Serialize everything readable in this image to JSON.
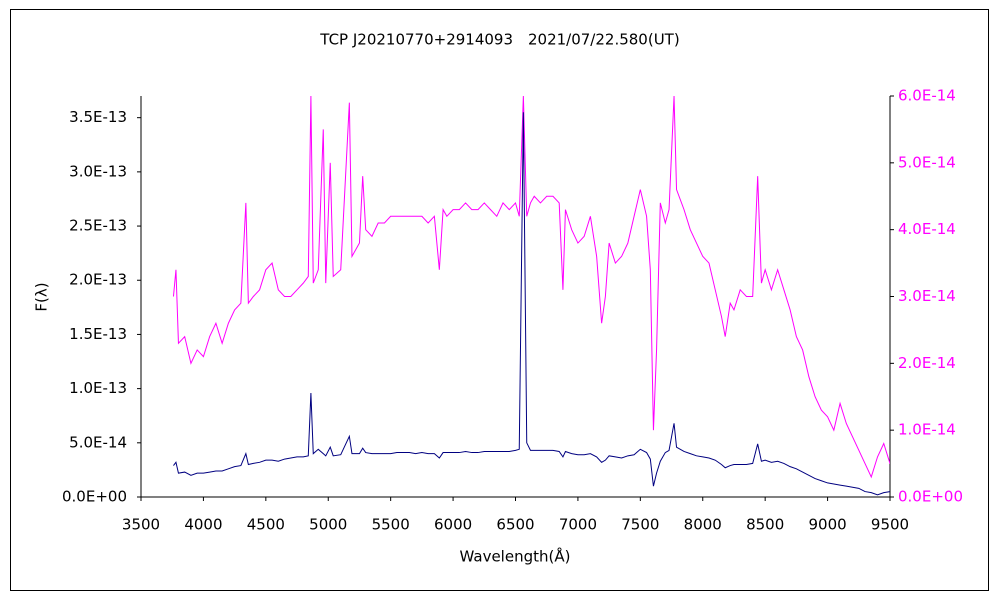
{
  "chart_data": {
    "type": "line",
    "title": "TCP J20210770+2914093　2021/07/22.580(UT)",
    "x_label": "Wavelength(Å)",
    "y_label": "F(λ)",
    "xlim": [
      3500,
      9500
    ],
    "xticks": [
      3500,
      4000,
      4500,
      5000,
      5500,
      6000,
      6500,
      7000,
      7500,
      8000,
      8500,
      9000,
      9500
    ],
    "ylim": [
      0,
      3.7e-13
    ],
    "yticks": [
      {
        "value": 0,
        "label": "0.0E+00"
      },
      {
        "value": 5e-14,
        "label": "5.0E-14"
      },
      {
        "value": 1e-13,
        "label": "1.0E-13"
      },
      {
        "value": 1.5e-13,
        "label": "1.5E-13"
      },
      {
        "value": 2e-13,
        "label": "2.0E-13"
      },
      {
        "value": 2.5e-13,
        "label": "2.5E-13"
      },
      {
        "value": 3e-13,
        "label": "3.0E-13"
      },
      {
        "value": 3.5e-13,
        "label": "3.5E-13"
      }
    ],
    "y2lim": [
      0,
      6e-14
    ],
    "y2ticks": [
      {
        "value": 0,
        "label": "0.0E+00"
      },
      {
        "value": 1e-14,
        "label": "1.0E-14"
      },
      {
        "value": 2e-14,
        "label": "2.0E-14"
      },
      {
        "value": 3e-14,
        "label": "3.0E-14"
      },
      {
        "value": 4e-14,
        "label": "4.0E-14"
      },
      {
        "value": 5e-14,
        "label": "5.0E-14"
      },
      {
        "value": 6e-14,
        "label": "6.0E-14"
      }
    ],
    "x": [
      3760,
      3780,
      3800,
      3850,
      3900,
      3950,
      4000,
      4050,
      4100,
      4150,
      4200,
      4250,
      4300,
      4340,
      4360,
      4400,
      4450,
      4500,
      4550,
      4600,
      4650,
      4700,
      4750,
      4800,
      4840,
      4861,
      4880,
      4920,
      4960,
      4980,
      5016,
      5040,
      5100,
      5169,
      5190,
      5250,
      5276,
      5300,
      5350,
      5400,
      5450,
      5500,
      5550,
      5600,
      5650,
      5700,
      5750,
      5800,
      5850,
      5890,
      5920,
      5950,
      6000,
      6050,
      6100,
      6150,
      6200,
      6250,
      6300,
      6350,
      6400,
      6450,
      6500,
      6530,
      6563,
      6590,
      6620,
      6650,
      6700,
      6750,
      6800,
      6850,
      6880,
      6900,
      6950,
      7000,
      7050,
      7100,
      7150,
      7190,
      7220,
      7250,
      7300,
      7350,
      7400,
      7450,
      7500,
      7550,
      7580,
      7605,
      7630,
      7660,
      7700,
      7730,
      7770,
      7790,
      7850,
      7900,
      7950,
      8000,
      8050,
      8100,
      8150,
      8180,
      8220,
      8250,
      8300,
      8350,
      8400,
      8440,
      8470,
      8500,
      8550,
      8600,
      8650,
      8700,
      8750,
      8800,
      8850,
      8900,
      8950,
      9000,
      9050,
      9100,
      9150,
      9200,
      9250,
      9300,
      9350,
      9400,
      9450,
      9500
    ],
    "series": [
      {
        "color": "#ff00ff",
        "axis": "y2",
        "values": [
          3e-14,
          3.4e-14,
          2.3e-14,
          2.4e-14,
          2e-14,
          2.2e-14,
          2.1e-14,
          2.4e-14,
          2.6e-14,
          2.3e-14,
          2.6e-14,
          2.8e-14,
          2.9e-14,
          4.4e-14,
          2.9e-14,
          3e-14,
          3.1e-14,
          3.4e-14,
          3.5e-14,
          3.1e-14,
          3e-14,
          3e-14,
          3.1e-14,
          3.2e-14,
          3.3e-14,
          6e-14,
          3.2e-14,
          3.4e-14,
          5.5e-14,
          3.2e-14,
          5e-14,
          3.3e-14,
          3.4e-14,
          5.9e-14,
          3.6e-14,
          3.8e-14,
          4.8e-14,
          4e-14,
          3.9e-14,
          4.1e-14,
          4.1e-14,
          4.2e-14,
          4.2e-14,
          4.2e-14,
          4.2e-14,
          4.2e-14,
          4.2e-14,
          4.1e-14,
          4.2e-14,
          3.4e-14,
          4.3e-14,
          4.2e-14,
          4.3e-14,
          4.3e-14,
          4.4e-14,
          4.3e-14,
          4.3e-14,
          4.4e-14,
          4.3e-14,
          4.2e-14,
          4.4e-14,
          4.3e-14,
          4.4e-14,
          4.2e-14,
          6e-14,
          4.2e-14,
          4.4e-14,
          4.5e-14,
          4.4e-14,
          4.5e-14,
          4.5e-14,
          4.4e-14,
          3.1e-14,
          4.3e-14,
          4e-14,
          3.8e-14,
          3.9e-14,
          4.2e-14,
          3.6e-14,
          2.6e-14,
          3e-14,
          3.8e-14,
          3.5e-14,
          3.6e-14,
          3.8e-14,
          4.2e-14,
          4.6e-14,
          4.2e-14,
          3.4e-14,
          1e-14,
          2.2e-14,
          4.4e-14,
          4.1e-14,
          4.3e-14,
          6e-14,
          4.6e-14,
          4.3e-14,
          4e-14,
          3.8e-14,
          3.6e-14,
          3.5e-14,
          3.1e-14,
          2.7e-14,
          2.4e-14,
          2.9e-14,
          2.8e-14,
          3.1e-14,
          3e-14,
          3e-14,
          4.8e-14,
          3.2e-14,
          3.4e-14,
          3.1e-14,
          3.4e-14,
          3.1e-14,
          2.8e-14,
          2.4e-14,
          2.2e-14,
          1.8e-14,
          1.5e-14,
          1.3e-14,
          1.2e-14,
          1e-14,
          1.4e-14,
          1.1e-14,
          9e-15,
          7e-15,
          5e-15,
          3e-15,
          6e-15,
          8e-15,
          5e-15
        ]
      },
      {
        "color": "#000080",
        "values": [
          2.9e-14,
          3.2e-14,
          2.2e-14,
          2.3e-14,
          2e-14,
          2.2e-14,
          2.2e-14,
          2.3e-14,
          2.4e-14,
          2.4e-14,
          2.6e-14,
          2.8e-14,
          2.9e-14,
          4e-14,
          3e-14,
          3.1e-14,
          3.2e-14,
          3.4e-14,
          3.4e-14,
          3.3e-14,
          3.5e-14,
          3.6e-14,
          3.7e-14,
          3.7e-14,
          3.8e-14,
          9.6e-14,
          4e-14,
          4.4e-14,
          4e-14,
          3.8e-14,
          4.6e-14,
          3.8e-14,
          3.9e-14,
          5.6e-14,
          4e-14,
          4e-14,
          4.5e-14,
          4.1e-14,
          4e-14,
          4e-14,
          4e-14,
          4e-14,
          4.1e-14,
          4.1e-14,
          4.1e-14,
          4e-14,
          4.1e-14,
          4e-14,
          4e-14,
          3.6e-14,
          4.1e-14,
          4.1e-14,
          4.1e-14,
          4.1e-14,
          4.2e-14,
          4.1e-14,
          4.1e-14,
          4.2e-14,
          4.2e-14,
          4.2e-14,
          4.2e-14,
          4.2e-14,
          4.3e-14,
          4.4e-14,
          3.55e-13,
          5e-14,
          4.3e-14,
          4.3e-14,
          4.3e-14,
          4.3e-14,
          4.3e-14,
          4.2e-14,
          3.7e-14,
          4.2e-14,
          4e-14,
          3.9e-14,
          3.9e-14,
          4e-14,
          3.7e-14,
          3.2e-14,
          3.4e-14,
          3.8e-14,
          3.7e-14,
          3.6e-14,
          3.8e-14,
          3.9e-14,
          4.4e-14,
          4.1e-14,
          3.5e-14,
          1e-14,
          2.2e-14,
          3.3e-14,
          4.1e-14,
          4.3e-14,
          6.8e-14,
          4.6e-14,
          4.2e-14,
          4e-14,
          3.8e-14,
          3.7e-14,
          3.6e-14,
          3.4e-14,
          3e-14,
          2.7e-14,
          2.9e-14,
          3e-14,
          3e-14,
          3e-14,
          3.1e-14,
          4.9e-14,
          3.3e-14,
          3.4e-14,
          3.2e-14,
          3.3e-14,
          3.1e-14,
          2.8e-14,
          2.6e-14,
          2.3e-14,
          2e-14,
          1.7e-14,
          1.5e-14,
          1.3e-14,
          1.2e-14,
          1.1e-14,
          1e-14,
          9e-15,
          8e-15,
          5e-15,
          4e-15,
          2e-15,
          4e-15,
          5e-15
        ]
      }
    ]
  }
}
